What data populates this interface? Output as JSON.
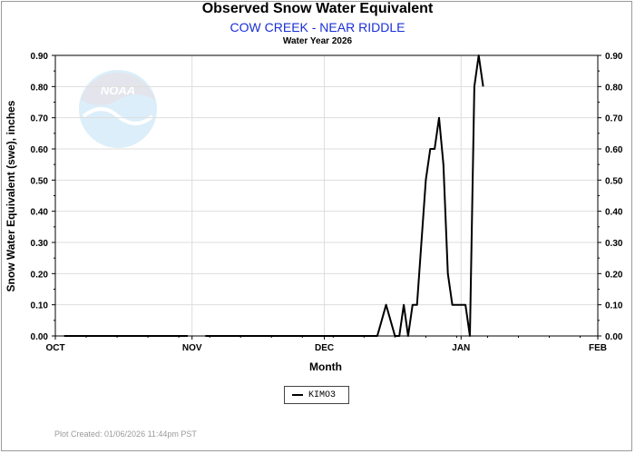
{
  "header": {
    "title": "Observed Snow Water Equivalent",
    "subtitle": "COW CREEK - NEAR RIDDLE",
    "subsubtitle": "Water Year 2026"
  },
  "footer": {
    "plot_created": "Plot Created: 01/06/2026 11:44pm PST"
  },
  "logo": {
    "text": "NOAA"
  },
  "colors": {
    "line": "#000000",
    "grid": "#dddddd",
    "subtitle": "#1a2fd6",
    "footer": "#9a9a9a"
  },
  "chart_data": {
    "type": "line",
    "title": "Observed Snow Water Equivalent",
    "xlabel": "Month",
    "ylabel": "Snow Water Equivalent (swe),  inches",
    "xlim": [
      "2025-10-01",
      "2026-02-01"
    ],
    "ylim": [
      0,
      0.9
    ],
    "x_ticks": [
      "OCT",
      "NOV",
      "DEC",
      "JAN",
      "FEB"
    ],
    "y_ticks": [
      "0.00",
      "0.10",
      "0.20",
      "0.30",
      "0.40",
      "0.50",
      "0.60",
      "0.70",
      "0.80",
      "0.90"
    ],
    "grid": true,
    "legend_position": "bottom-center",
    "series": [
      {
        "name": "KIMO3",
        "segments": [
          {
            "x": [
              "2025-10-03",
              "2025-10-31"
            ],
            "y": [
              0,
              0
            ]
          },
          {
            "x": [
              "2025-11-04",
              "2025-12-13",
              "2025-12-14",
              "2025-12-15",
              "2025-12-17",
              "2025-12-18",
              "2025-12-19",
              "2025-12-20",
              "2025-12-21",
              "2025-12-22",
              "2025-12-24",
              "2025-12-25",
              "2025-12-26",
              "2025-12-27",
              "2025-12-28",
              "2025-12-29",
              "2025-12-30",
              "2025-12-31",
              "2026-01-02",
              "2026-01-03",
              "2026-01-04",
              "2026-01-05",
              "2026-01-06"
            ],
            "y": [
              0,
              0,
              0.05,
              0.1,
              0,
              0,
              0.1,
              0,
              0.1,
              0.1,
              0.5,
              0.6,
              0.6,
              0.7,
              0.55,
              0.2,
              0.1,
              0.1,
              0.1,
              0,
              0.8,
              0.9,
              0.8
            ]
          }
        ]
      }
    ]
  }
}
